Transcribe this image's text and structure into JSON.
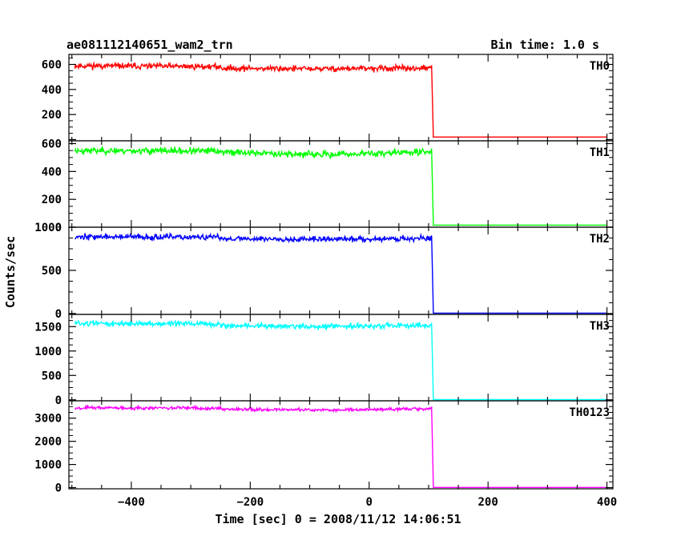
{
  "header": {
    "title": "ae081112140651_wam2_trn",
    "bin_time": "Bin time: 1.0 s"
  },
  "chart_data": {
    "type": "line",
    "xlabel": "Time [sec] 0 = 2008/11/12 14:06:51",
    "ylabel": "Counts/sec",
    "xlim": [
      -505,
      410
    ],
    "x_ticks": [
      -400,
      -200,
      0,
      200,
      400
    ],
    "x_tick_labels": [
      "−400",
      "−200",
      "0",
      "200",
      "400"
    ],
    "step_time": 108,
    "panels": [
      {
        "name": "TH0",
        "color": "#ff0000",
        "ylim": [
          -10,
          680
        ],
        "y_ticks": [
          0,
          200,
          400,
          600
        ],
        "y_tick_labels": [
          "",
          "200",
          "400",
          "600"
        ],
        "mean_start": 590,
        "mean_end": 570,
        "mean_dip": 565,
        "noise": 20,
        "after": 20,
        "seed": 11
      },
      {
        "name": "TH1",
        "color": "#00ff00",
        "ylim": [
          0,
          620
        ],
        "y_ticks": [
          0,
          200,
          400,
          600
        ],
        "y_tick_labels": [
          "0",
          "200",
          "400",
          "600"
        ],
        "mean_start": 550,
        "mean_end": 540,
        "mean_dip": 520,
        "noise": 20,
        "after": 15,
        "seed": 23
      },
      {
        "name": "TH2",
        "color": "#0000ff",
        "ylim": [
          -10,
          1000
        ],
        "y_ticks": [
          0,
          500,
          1000
        ],
        "y_tick_labels": [
          "0",
          "500",
          "1000"
        ],
        "mean_start": 890,
        "mean_end": 870,
        "mean_dip": 860,
        "noise": 28,
        "after": 5,
        "seed": 37
      },
      {
        "name": "TH3",
        "color": "#00ffff",
        "ylim": [
          -20,
          1750
        ],
        "y_ticks": [
          0,
          500,
          1000,
          1500
        ],
        "y_tick_labels": [
          "0",
          "500",
          "1000",
          "1500"
        ],
        "mean_start": 1570,
        "mean_end": 1520,
        "mean_dip": 1500,
        "noise": 45,
        "after": 5,
        "seed": 51
      },
      {
        "name": "TH0123",
        "color": "#ff00ff",
        "ylim": [
          -50,
          3750
        ],
        "y_ticks": [
          0,
          1000,
          2000,
          3000
        ],
        "y_tick_labels": [
          "0",
          "1000",
          "2000",
          "3000"
        ],
        "mean_start": 3450,
        "mean_end": 3400,
        "mean_dip": 3350,
        "noise": 60,
        "after": 10,
        "seed": 67
      }
    ]
  }
}
